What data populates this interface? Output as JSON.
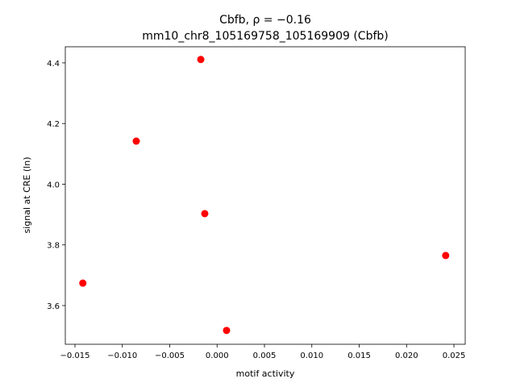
{
  "chart_data": {
    "type": "scatter",
    "title": "Cbfb, ρ = −0.16",
    "subtitle": "mm10_chr8_105169758_105169909 (Cbfb)",
    "x_label": "motif activity",
    "y_label": "signal at CRE (ln)",
    "color": "#ff0000",
    "x": [
      -0.00172,
      -0.00853,
      -0.0013,
      -0.01417,
      0.001,
      0.02413
    ],
    "y": [
      4.411,
      4.142,
      3.903,
      3.674,
      3.518,
      3.765
    ],
    "xlim": [
      -0.01602,
      0.02619
    ],
    "ylim": [
      3.4724,
      4.453
    ],
    "xticks": [
      {
        "value": -0.015,
        "label": "−0.015"
      },
      {
        "value": -0.01,
        "label": "−0.010"
      },
      {
        "value": -0.005,
        "label": "−0.005"
      },
      {
        "value": 0,
        "label": "0.000"
      },
      0.005,
      {
        "value": 0.01,
        "label": "0.010"
      },
      0.015,
      {
        "value": 0.02,
        "label": "0.020"
      },
      0.025
    ],
    "yticks": [
      3.6,
      3.8,
      {
        "value": 4,
        "label": "4.0"
      },
      4.2,
      4.4
    ]
  }
}
